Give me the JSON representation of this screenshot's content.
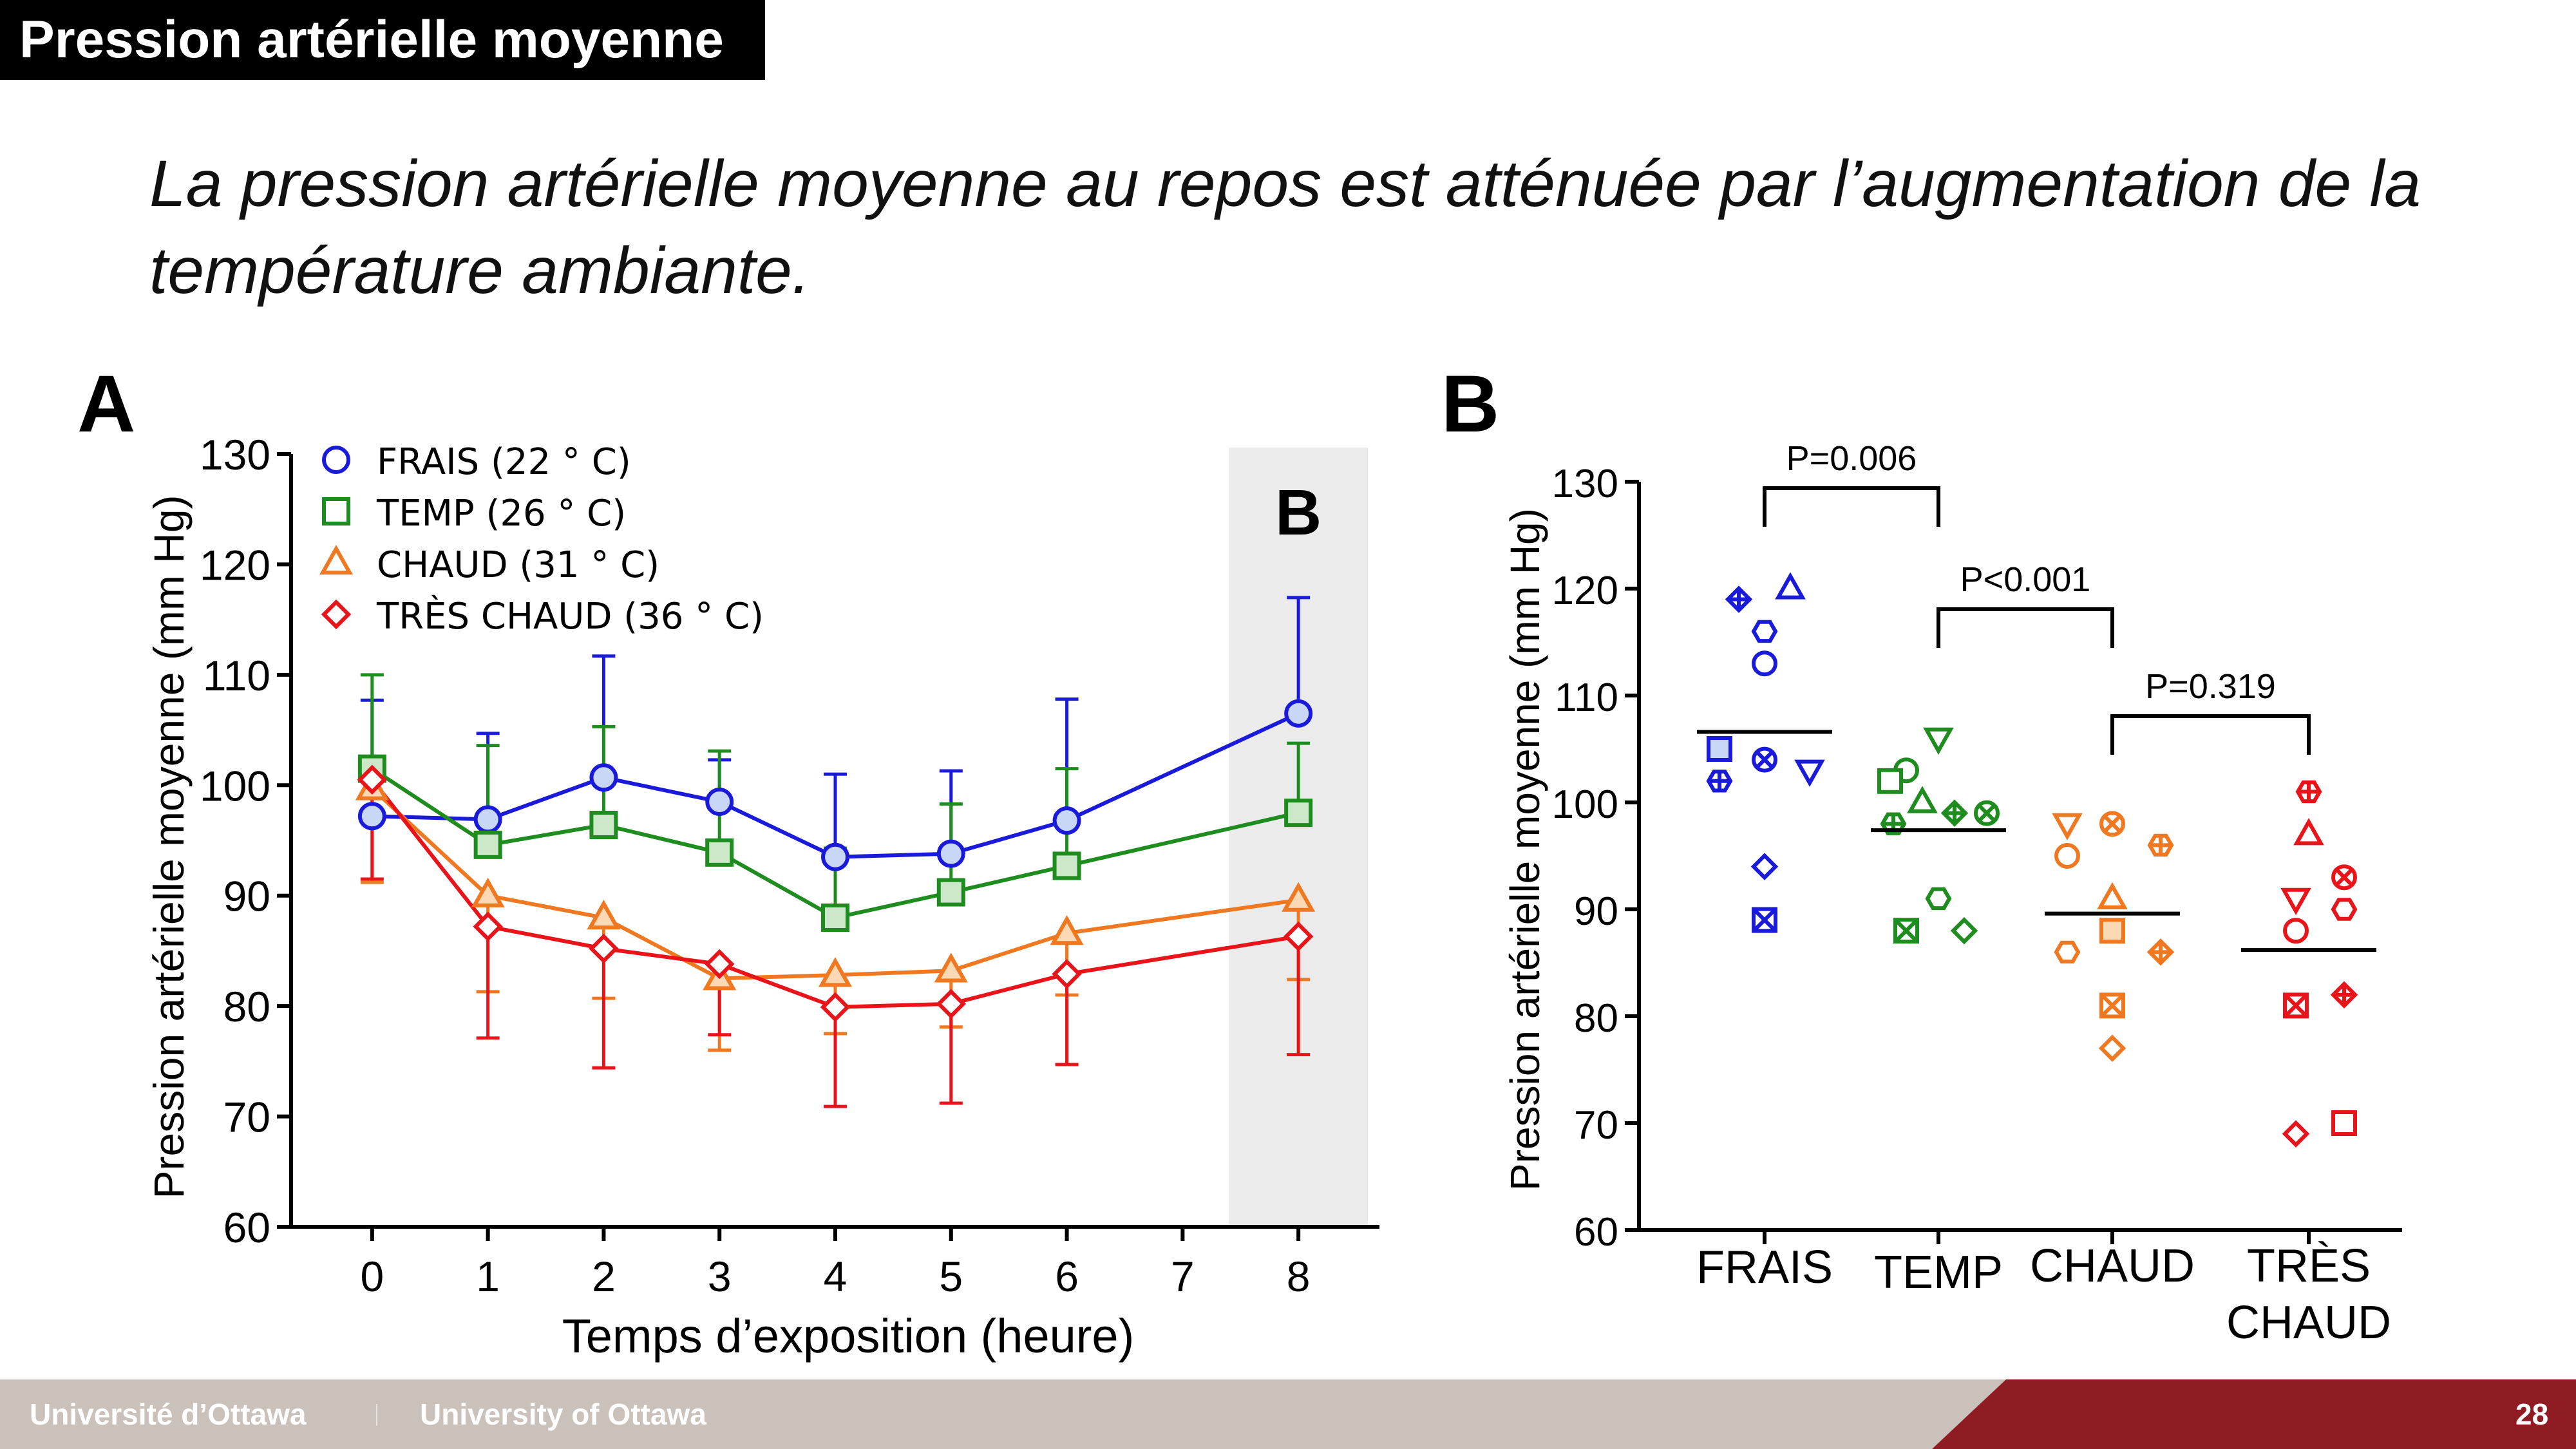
{
  "slide": {
    "title": "Pression artérielle moyenne",
    "subtitle": "La pression artérielle moyenne au repos est atténuée par l’augmentation de la température ambiante.",
    "page_number": "28"
  },
  "footer": {
    "left_text": "Université d’Ottawa",
    "right_text": "University of Ottawa"
  },
  "colors": {
    "frais": "#1a1adb",
    "temp": "#1e8c1e",
    "chaud": "#f07820",
    "tres_chaud": "#e8141a",
    "footer_red": "#8f1c23"
  },
  "chart_data": [
    {
      "panel": "A",
      "type": "line",
      "xlabel": "Temps d’exposition (heure)",
      "ylabel": "Pression artérielle moyenne (mm Hg)",
      "ylim": [
        60,
        130
      ],
      "xlim": [
        -0.7,
        8.7
      ],
      "x_ticks": [
        0,
        1,
        2,
        3,
        4,
        5,
        6,
        7,
        8
      ],
      "y_ticks": [
        60,
        70,
        80,
        90,
        100,
        110,
        120,
        130
      ],
      "shaded_region": {
        "x_range": [
          7.4,
          8.6
        ],
        "label": "B"
      },
      "legend_placement": "top-left",
      "series": [
        {
          "name": "FRAIS (22 ° C)",
          "color": "#1a1adb",
          "marker": "circle",
          "x": [
            0,
            1,
            2,
            3,
            4,
            5,
            6,
            8
          ],
          "values": [
            97.2,
            96.9,
            100.7,
            98.5,
            93.5,
            93.8,
            96.8,
            106.5
          ],
          "errors": [
            10.5,
            7.8,
            11.0,
            3.8,
            7.5,
            7.5,
            11.0,
            10.5
          ]
        },
        {
          "name": "TEMP (26 ° C)",
          "color": "#1e8c1e",
          "marker": "square",
          "x": [
            0,
            1,
            2,
            3,
            4,
            5,
            6,
            8
          ],
          "values": [
            101.5,
            94.6,
            96.4,
            93.9,
            88.0,
            90.3,
            92.7,
            97.5
          ],
          "errors": [
            8.5,
            9.0,
            8.9,
            9.2,
            6.3,
            8.0,
            8.8,
            6.3
          ]
        },
        {
          "name": "CHAUD (31 ° C)",
          "color": "#f07820",
          "marker": "triangle",
          "x": [
            0,
            1,
            2,
            3,
            4,
            5,
            6,
            8
          ],
          "values": [
            99.7,
            90.0,
            88.0,
            82.5,
            82.8,
            83.2,
            86.6,
            89.6
          ],
          "errors": [
            8.5,
            8.7,
            7.3,
            6.5,
            5.3,
            5.1,
            5.6,
            7.2
          ]
        },
        {
          "name": "TRÈS CHAUD (36 ° C)",
          "color": "#e8141a",
          "marker": "diamond",
          "x": [
            0,
            1,
            2,
            3,
            4,
            5,
            6,
            8
          ],
          "values": [
            100.5,
            87.2,
            85.2,
            83.8,
            79.9,
            80.2,
            82.9,
            86.3
          ],
          "errors": [
            9.0,
            10.1,
            10.8,
            6.4,
            9.0,
            9.0,
            8.2,
            10.7
          ]
        }
      ]
    },
    {
      "panel": "B",
      "type": "scatter",
      "ylabel": "Pression artérielle moyenne (mm Hg)",
      "ylim": [
        60,
        130
      ],
      "y_ticks": [
        60,
        70,
        80,
        90,
        100,
        110,
        120,
        130
      ],
      "categories": [
        "FRAIS",
        "TEMP",
        "CHAUD",
        "TRÈS CHAUD"
      ],
      "group_means": [
        106.6,
        97.4,
        89.6,
        86.2
      ],
      "comparisons": [
        {
          "from": 0,
          "to": 1,
          "label": "P=0.006"
        },
        {
          "from": 1,
          "to": 2,
          "label": "P<0.001"
        },
        {
          "from": 2,
          "to": 3,
          "label": "P=0.319"
        }
      ],
      "points": [
        [
          {
            "y": 119,
            "m": "diamondcross"
          },
          {
            "y": 120,
            "m": "triangle"
          },
          {
            "y": 116,
            "m": "hexagon"
          },
          {
            "y": 113,
            "m": "circle"
          },
          {
            "y": 105,
            "m": "square",
            "fill": true
          },
          {
            "y": 104,
            "m": "circlex"
          },
          {
            "y": 103,
            "m": "invtriangle"
          },
          {
            "y": 102,
            "m": "hexcross"
          },
          {
            "y": 94,
            "m": "diamond"
          },
          {
            "y": 89,
            "m": "squarex"
          }
        ],
        [
          {
            "y": 106,
            "m": "invtriangle"
          },
          {
            "y": 103,
            "m": "circle"
          },
          {
            "y": 102,
            "m": "square"
          },
          {
            "y": 100,
            "m": "triangle"
          },
          {
            "y": 99,
            "m": "diamondcross"
          },
          {
            "y": 99,
            "m": "circlex"
          },
          {
            "y": 98,
            "m": "hexcross"
          },
          {
            "y": 91,
            "m": "hexagon"
          },
          {
            "y": 88,
            "m": "squarex"
          },
          {
            "y": 88,
            "m": "diamond"
          }
        ],
        [
          {
            "y": 98,
            "m": "invtriangle"
          },
          {
            "y": 98,
            "m": "circlex"
          },
          {
            "y": 96,
            "m": "hexcross"
          },
          {
            "y": 95,
            "m": "circle"
          },
          {
            "y": 91,
            "m": "triangle"
          },
          {
            "y": 88,
            "m": "square",
            "fill": true
          },
          {
            "y": 86,
            "m": "hexagon"
          },
          {
            "y": 86,
            "m": "diamondcross"
          },
          {
            "y": 81,
            "m": "squarex"
          },
          {
            "y": 77,
            "m": "diamond"
          }
        ],
        [
          {
            "y": 101,
            "m": "hexcross"
          },
          {
            "y": 97,
            "m": "triangle"
          },
          {
            "y": 93,
            "m": "circlex"
          },
          {
            "y": 91,
            "m": "invtriangle"
          },
          {
            "y": 90,
            "m": "hexagon"
          },
          {
            "y": 88,
            "m": "circle"
          },
          {
            "y": 82,
            "m": "diamondcross"
          },
          {
            "y": 81,
            "m": "squarex"
          },
          {
            "y": 70,
            "m": "square"
          },
          {
            "y": 69,
            "m": "diamond"
          }
        ]
      ]
    }
  ]
}
